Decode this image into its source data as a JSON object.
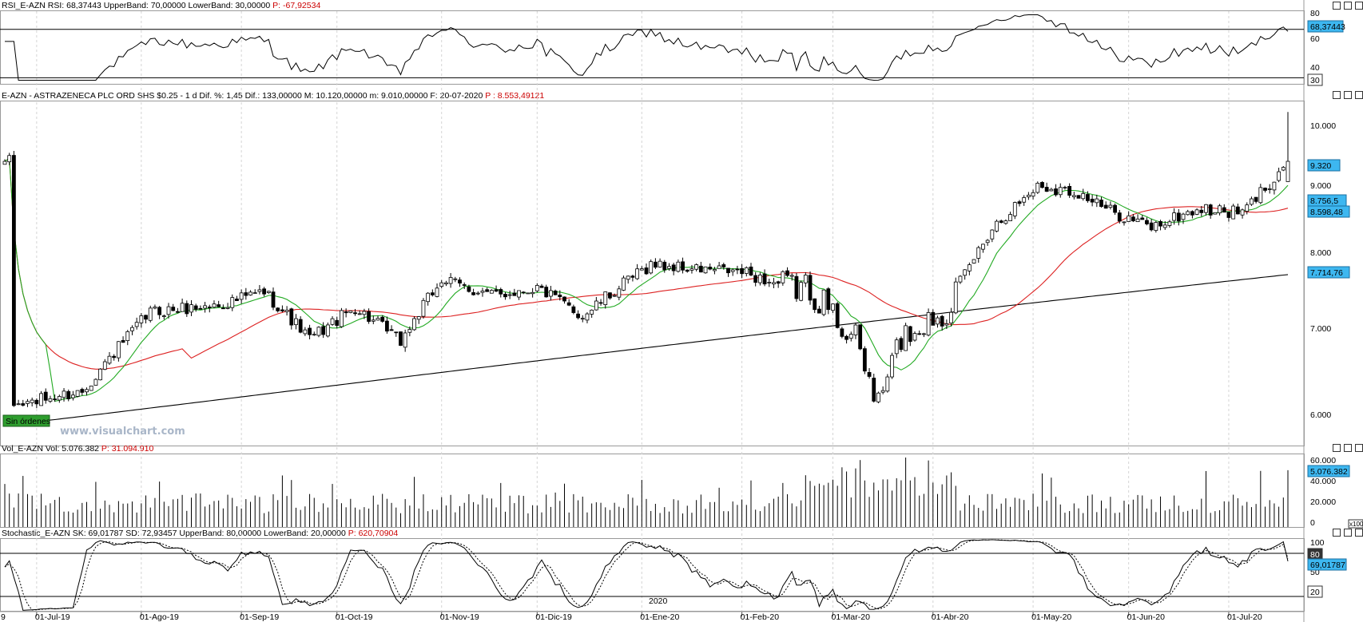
{
  "panels": {
    "rsi": {
      "header": "RSI_E-AZN  RSI: 68,37443  UpperBand: 70,00000  LowerBand: 30,00000",
      "header_p": "P: -67,92534",
      "ticks": [
        "80",
        "60",
        "40"
      ],
      "value_badge": "68,37443",
      "band_badge": "30"
    },
    "price": {
      "header": "E-AZN - ASTRAZENECA PLC ORD SHS $0.25 - 1 d  Dif. %: 1,45  Dif.: 133,00000  M: 10.120,00000  m: 9.010,00000  F: 20-07-2020",
      "header_p": "P : 8.553,49121",
      "ticks": [
        "10.000",
        "9.000",
        "8.000",
        "7.000",
        "6.000"
      ],
      "badges": [
        "9.320",
        "8.756,5",
        "8.598,48",
        "7.714,76"
      ],
      "orders_label": "Sin órdenes",
      "watermark": "www.visualchart.com"
    },
    "volume": {
      "header": "Vol_E-AZN  Vol: 5.076.382",
      "header_p": "P: 31.094.910",
      "ticks": [
        "60.000",
        "40.000",
        "20.000",
        "0"
      ],
      "value_badge": "5.076.382",
      "scale_badge": "x100"
    },
    "stochastic": {
      "header": "Stochastic_E-AZN  SK: 69,01787  SD: 72,93457  UpperBand: 80,00000  LowerBand: 20,00000",
      "header_p": "P: 620,70904",
      "ticks": [
        "100",
        "50"
      ],
      "value_badge": "69,01787",
      "band_badge": "20",
      "band_badge_top": "80"
    }
  },
  "x_axis": {
    "first_label": "9",
    "labels": [
      "01-Jul-19",
      "01-Ago-19",
      "01-Sep-19",
      "01-Oct-19",
      "01-Nov-19",
      "01-Dic-19",
      "01-Ene-20",
      "01-Feb-20",
      "01-Mar-20",
      "01-Abr-20",
      "01-May-20",
      "01-Jun-20",
      "01-Jul-20"
    ],
    "year_marker": "2020"
  },
  "colors": {
    "sma_fast": "#22aa22",
    "sma_mid": "#dd2222",
    "sma_slow": "#000000",
    "badge": "#3db7f0",
    "orders": "#2e9e2e",
    "header_value": "#cc0000"
  },
  "chart_data": {
    "type": "candlestick",
    "title": "E-AZN - ASTRAZENECA PLC ORD SHS $0.25 - 1 d",
    "scale": "log",
    "y_range": [
      5800,
      10300
    ],
    "series": [
      {
        "name": "RSI_E-AZN",
        "range": [
          25,
          85
        ],
        "bands": [
          70,
          30
        ]
      },
      {
        "name": "Vol_E-AZN",
        "range": [
          0,
          65000
        ]
      },
      {
        "name": "Stochastic_E-AZN",
        "range": [
          0,
          100
        ],
        "bands": [
          80,
          20
        ]
      }
    ],
    "anchors": {
      "dates": [
        "2019-06-24",
        "2019-07-15",
        "2019-08-05",
        "2019-08-26",
        "2019-09-09",
        "2019-09-23",
        "2019-10-07",
        "2019-10-21",
        "2019-11-01",
        "2019-11-18",
        "2019-12-02",
        "2019-12-16",
        "2020-01-06",
        "2020-01-20",
        "2020-02-03",
        "2020-02-17",
        "2020-02-24",
        "2020-03-09",
        "2020-03-16",
        "2020-03-23",
        "2020-04-06",
        "2020-04-20",
        "2020-05-04",
        "2020-05-15",
        "2020-05-25",
        "2020-06-08",
        "2020-06-22",
        "2020-07-06",
        "2020-07-14",
        "2020-07-20"
      ],
      "close": [
        6200,
        6350,
        7250,
        7330,
        7500,
        6930,
        7300,
        6900,
        7650,
        7450,
        7550,
        7200,
        7850,
        7780,
        7750,
        7550,
        7550,
        6900,
        6200,
        6950,
        7300,
        8350,
        8950,
        8850,
        8600,
        8350,
        8600,
        8550,
        9000,
        9320
      ]
    },
    "sma_mid_end": 8598.48,
    "sma_slow_end": 7714.76,
    "sma_fast_end": 8756.5
  }
}
